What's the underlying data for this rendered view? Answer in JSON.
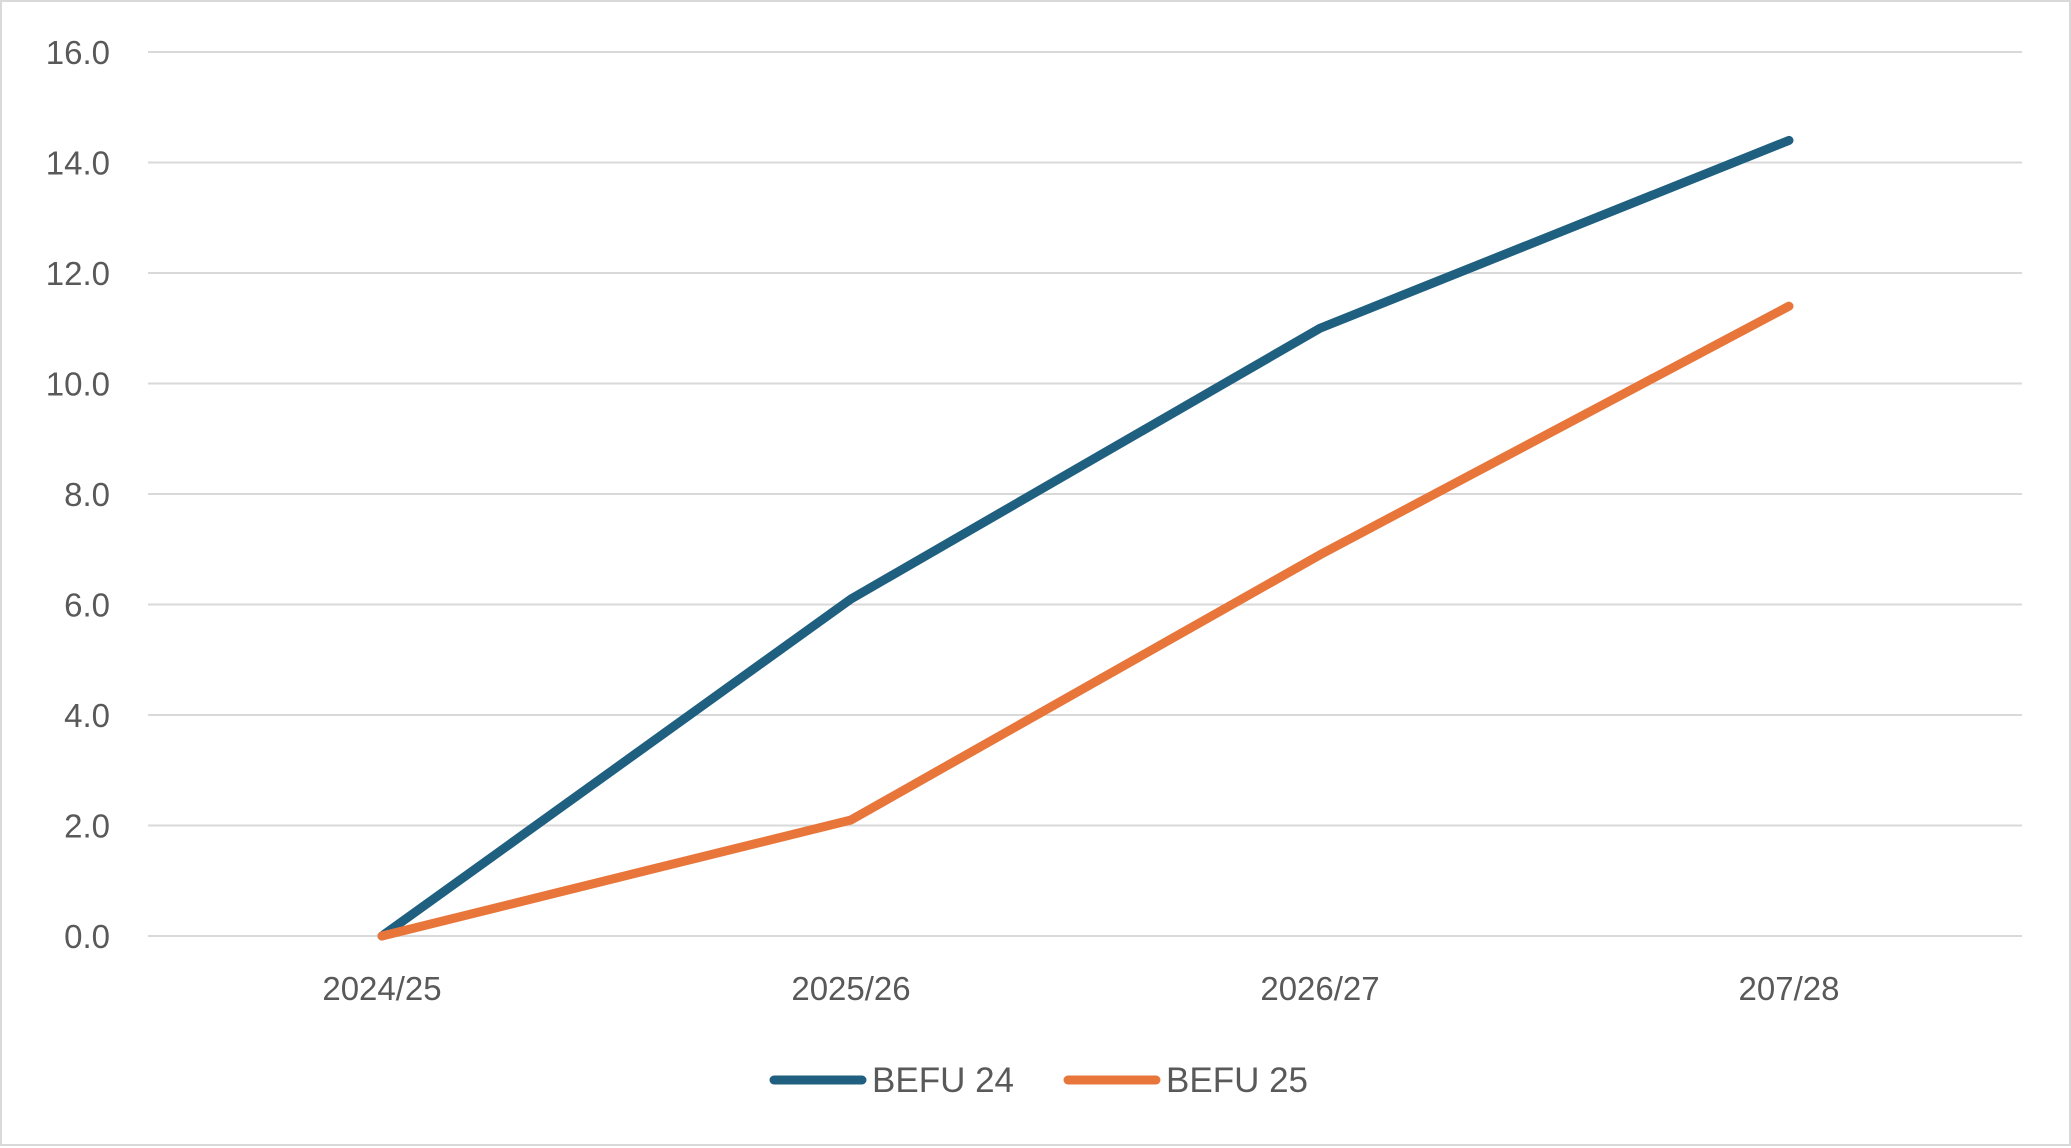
{
  "chart_data": {
    "type": "line",
    "categories": [
      "2024/25",
      "2025/26",
      "2026/27",
      "207/28"
    ],
    "series": [
      {
        "name": "BEFU 24",
        "values": [
          0.0,
          6.1,
          11.0,
          14.4
        ],
        "color": "#1f5f7f"
      },
      {
        "name": "BEFU 25",
        "values": [
          0.0,
          2.1,
          6.9,
          11.4
        ],
        "color": "#e8763a"
      }
    ],
    "ylim": [
      0,
      16
    ],
    "yticks": [
      "0.0",
      "2.0",
      "4.0",
      "6.0",
      "8.0",
      "10.0",
      "12.0",
      "14.0",
      "16.0"
    ],
    "grid": true,
    "legend": "bottom"
  }
}
